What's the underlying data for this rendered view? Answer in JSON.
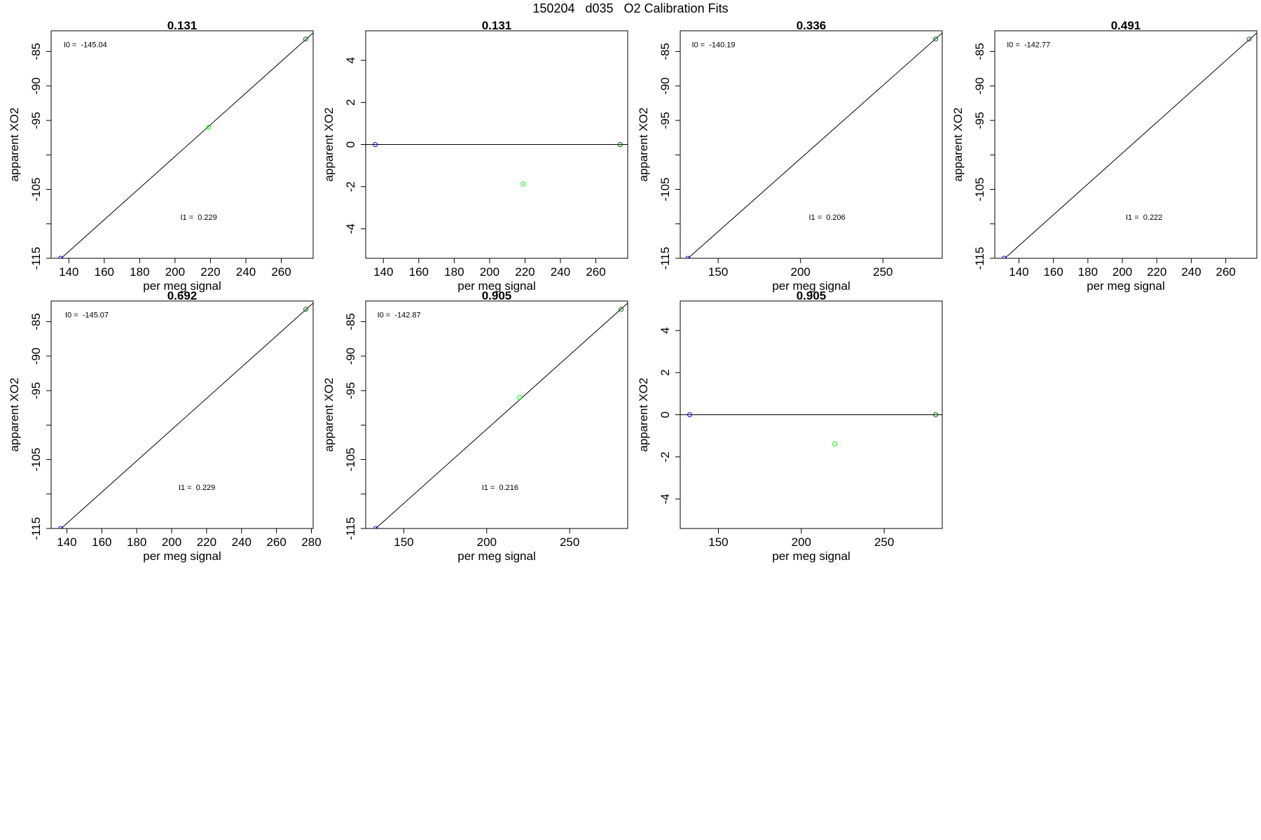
{
  "figure": {
    "title": "150204   d035   O2 Calibration Fits"
  },
  "colors": {
    "fit_line": "#000000",
    "point_low": "#0000ff",
    "point_mid": "#00ff00",
    "point_high": "#006400"
  },
  "chart_data": [
    {
      "type": "scatter",
      "title": "0.131",
      "xlabel": "per meg signal",
      "ylabel": "apparent XO2",
      "xlim": [
        130,
        278
      ],
      "ylim": [
        -115,
        -82
      ],
      "xticks": [
        140,
        160,
        180,
        200,
        220,
        240,
        260
      ],
      "yticks": [
        -115,
        -110,
        -105,
        -100,
        -95,
        -90,
        -85
      ],
      "ytick_labels": [
        "-115",
        "",
        "-105",
        "",
        "-95",
        "-90",
        "-85"
      ],
      "points": [
        {
          "x": 135.4,
          "y": -115.0,
          "color": "#0000ff"
        },
        {
          "x": 219.0,
          "y": -96.0,
          "color": "#00ff00"
        },
        {
          "x": 273.8,
          "y": -83.2,
          "color": "#006400"
        }
      ],
      "fit_line": {
        "x": [
          130,
          278
        ],
        "y": [
          -116.3,
          -82.3
        ]
      },
      "annotations": [
        {
          "text": "I0 =  -145.04",
          "x": 137,
          "y": -84.4
        },
        {
          "text": "I1 =  0.229",
          "x": 203,
          "y": -109.4
        }
      ]
    },
    {
      "type": "scatter",
      "title": "0.131",
      "xlabel": "per meg signal",
      "ylabel": "apparent XO2",
      "xlim": [
        130,
        278
      ],
      "ylim": [
        -5.4,
        5.4
      ],
      "xticks": [
        140,
        160,
        180,
        200,
        220,
        240,
        260
      ],
      "yticks": [
        -4,
        -2,
        0,
        2,
        4
      ],
      "ytick_labels": [
        "-4",
        "-2",
        "0",
        "2",
        "4"
      ],
      "points": [
        {
          "x": 135.4,
          "y": 0,
          "color": "#0000ff"
        },
        {
          "x": 219.0,
          "y": -1.87,
          "color": "#00ff00"
        },
        {
          "x": 273.8,
          "y": 0,
          "color": "#006400"
        }
      ],
      "fit_line": {
        "x": [
          130,
          278
        ],
        "y": [
          0,
          0
        ]
      },
      "annotations": []
    },
    {
      "type": "scatter",
      "title": "0.336",
      "xlabel": "per meg signal",
      "ylabel": "apparent XO2",
      "xlim": [
        127,
        286
      ],
      "ylim": [
        -115,
        -82
      ],
      "xticks": [
        150,
        200,
        250
      ],
      "yticks": [
        -115,
        -110,
        -105,
        -100,
        -95,
        -90,
        -85
      ],
      "ytick_labels": [
        "-115",
        "",
        "-105",
        "",
        "-95",
        "-90",
        "-85"
      ],
      "points": [
        {
          "x": 131.7,
          "y": -115.0,
          "color": "#0000ff"
        },
        {
          "x": 282.0,
          "y": -83.2,
          "color": "#006400"
        }
      ],
      "fit_line": {
        "x": [
          127,
          286
        ],
        "y": [
          -116.0,
          -82.3
        ]
      },
      "annotations": [
        {
          "text": "I0 =  -140.19",
          "x": 134,
          "y": -84.4
        },
        {
          "text": "I1 =  0.206",
          "x": 205,
          "y": -109.4
        }
      ]
    },
    {
      "type": "scatter",
      "title": "0.491",
      "xlabel": "per meg signal",
      "ylabel": "apparent XO2",
      "xlim": [
        126,
        278
      ],
      "ylim": [
        -115,
        -82
      ],
      "xticks": [
        140,
        160,
        180,
        200,
        220,
        240,
        260
      ],
      "yticks": [
        -115,
        -110,
        -105,
        -100,
        -95,
        -90,
        -85
      ],
      "ytick_labels": [
        "-115",
        "",
        "-105",
        "",
        "-95",
        "-90",
        "-85"
      ],
      "points": [
        {
          "x": 131.5,
          "y": -115.0,
          "color": "#0000ff"
        },
        {
          "x": 273.6,
          "y": -83.2,
          "color": "#006400"
        }
      ],
      "fit_line": {
        "x": [
          126,
          278
        ],
        "y": [
          -116.3,
          -82.3
        ]
      },
      "annotations": [
        {
          "text": "I0 =  -142.77",
          "x": 133,
          "y": -84.4
        },
        {
          "text": "I1 =  0.222",
          "x": 202,
          "y": -109.4
        }
      ]
    },
    {
      "type": "scatter",
      "title": "0.692",
      "xlabel": "per meg signal",
      "ylabel": "apparent XO2",
      "xlim": [
        131,
        281
      ],
      "ylim": [
        -115,
        -82
      ],
      "xticks": [
        140,
        160,
        180,
        200,
        220,
        240,
        260,
        280
      ],
      "yticks": [
        -115,
        -110,
        -105,
        -100,
        -95,
        -90,
        -85
      ],
      "ytick_labels": [
        "-115",
        "",
        "-105",
        "",
        "-95",
        "-90",
        "-85"
      ],
      "points": [
        {
          "x": 136.5,
          "y": -115.0,
          "color": "#0000ff"
        },
        {
          "x": 276.8,
          "y": -83.2,
          "color": "#006400"
        }
      ],
      "fit_line": {
        "x": [
          131,
          281
        ],
        "y": [
          -116.3,
          -82.3
        ]
      },
      "annotations": [
        {
          "text": "I0 =  -145.07",
          "x": 139,
          "y": -84.4
        },
        {
          "text": "I1 =  0.229",
          "x": 204,
          "y": -109.4
        }
      ]
    },
    {
      "type": "scatter",
      "title": "0.905",
      "xlabel": "per meg signal",
      "ylabel": "apparent XO2",
      "xlim": [
        127,
        285
      ],
      "ylim": [
        -115,
        -82
      ],
      "xticks": [
        150,
        200,
        250
      ],
      "yticks": [
        -115,
        -110,
        -105,
        -100,
        -95,
        -90,
        -85
      ],
      "ytick_labels": [
        "-115",
        "",
        "-105",
        "",
        "-95",
        "-90",
        "-85"
      ],
      "points": [
        {
          "x": 133.0,
          "y": -115.0,
          "color": "#0000ff"
        },
        {
          "x": 219.8,
          "y": -96.0,
          "color": "#00ff00"
        },
        {
          "x": 281.0,
          "y": -83.2,
          "color": "#006400"
        }
      ],
      "fit_line": {
        "x": [
          127,
          285
        ],
        "y": [
          -116.3,
          -82.3
        ]
      },
      "annotations": [
        {
          "text": "I0 =  -142.87",
          "x": 134,
          "y": -84.4
        },
        {
          "text": "I1 =  0.216",
          "x": 197,
          "y": -109.4
        }
      ]
    },
    {
      "type": "scatter",
      "title": "0.905",
      "xlabel": "per meg signal",
      "ylabel": "apparent XO2",
      "xlim": [
        127,
        285
      ],
      "ylim": [
        -5.4,
        5.4
      ],
      "xticks": [
        150,
        200,
        250
      ],
      "yticks": [
        -4,
        -2,
        0,
        2,
        4
      ],
      "ytick_labels": [
        "-4",
        "-2",
        "0",
        "2",
        "4"
      ],
      "points": [
        {
          "x": 132.7,
          "y": 0,
          "color": "#0000ff"
        },
        {
          "x": 220.2,
          "y": -1.38,
          "color": "#00ff00"
        },
        {
          "x": 281.0,
          "y": 0,
          "color": "#006400"
        }
      ],
      "fit_line": {
        "x": [
          127,
          285
        ],
        "y": [
          0,
          0
        ]
      },
      "annotations": []
    }
  ]
}
